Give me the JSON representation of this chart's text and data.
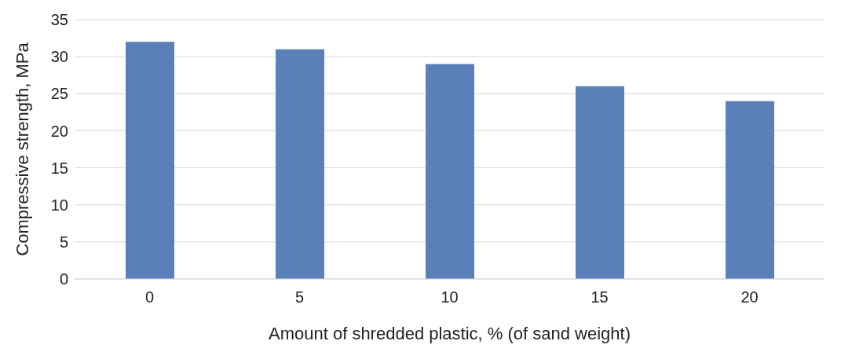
{
  "chart_data": {
    "type": "bar",
    "xlabel": "Amount of shredded plastic, % (of sand weight)",
    "ylabel": "Compressive strength, MPa",
    "categories": [
      "0",
      "5",
      "10",
      "15",
      "20"
    ],
    "values": [
      32,
      31,
      29,
      26,
      24
    ],
    "color": "#5b7fb8",
    "ylim": [
      0,
      35
    ],
    "yticks": [
      0,
      5,
      10,
      15,
      20,
      25,
      30,
      35
    ],
    "grid": "y",
    "legend": false
  }
}
